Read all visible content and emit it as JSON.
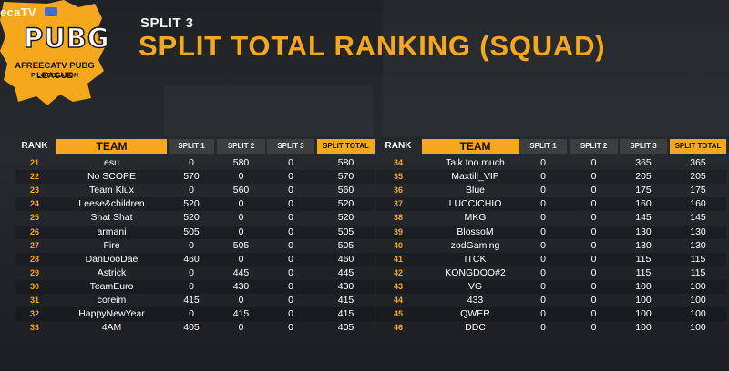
{
  "brand": {
    "text": "ecaTV"
  },
  "logo": {
    "game": "PUBG",
    "league": "AFREECATV PUBG LEAGUE",
    "season": "PILOT SEASON"
  },
  "header": {
    "subtitle": "SPLIT 3",
    "title": "SPLIT TOTAL RANKING (SQUAD)"
  },
  "columns": {
    "rank": "RANK",
    "team": "TEAM",
    "split1": "SPLIT 1",
    "split2": "SPLIT 2",
    "split3": "SPLIT 3",
    "total": "SPLIT TOTAL"
  },
  "colors": {
    "accent": "#f6a81c",
    "header_gray": "#3d3e40",
    "background": "#23262a"
  },
  "left_rows": [
    {
      "rank": "21",
      "team": "esu",
      "s1": "0",
      "s2": "580",
      "s3": "0",
      "total": "580"
    },
    {
      "rank": "22",
      "team": "No SCOPE",
      "s1": "570",
      "s2": "0",
      "s3": "0",
      "total": "570"
    },
    {
      "rank": "23",
      "team": "Team Klux",
      "s1": "0",
      "s2": "560",
      "s3": "0",
      "total": "560"
    },
    {
      "rank": "24",
      "team": "Leese&children",
      "s1": "520",
      "s2": "0",
      "s3": "0",
      "total": "520"
    },
    {
      "rank": "25",
      "team": "Shat Shat",
      "s1": "520",
      "s2": "0",
      "s3": "0",
      "total": "520"
    },
    {
      "rank": "26",
      "team": "armani",
      "s1": "505",
      "s2": "0",
      "s3": "0",
      "total": "505"
    },
    {
      "rank": "27",
      "team": "Fire",
      "s1": "0",
      "s2": "505",
      "s3": "0",
      "total": "505"
    },
    {
      "rank": "28",
      "team": "DanDooDae",
      "s1": "460",
      "s2": "0",
      "s3": "0",
      "total": "460"
    },
    {
      "rank": "29",
      "team": "Astrick",
      "s1": "0",
      "s2": "445",
      "s3": "0",
      "total": "445"
    },
    {
      "rank": "30",
      "team": "TeamEuro",
      "s1": "0",
      "s2": "430",
      "s3": "0",
      "total": "430"
    },
    {
      "rank": "31",
      "team": "coreim",
      "s1": "415",
      "s2": "0",
      "s3": "0",
      "total": "415"
    },
    {
      "rank": "32",
      "team": "HappyNewYear",
      "s1": "0",
      "s2": "415",
      "s3": "0",
      "total": "415"
    },
    {
      "rank": "33",
      "team": "4AM",
      "s1": "405",
      "s2": "0",
      "s3": "0",
      "total": "405"
    }
  ],
  "right_rows": [
    {
      "rank": "34",
      "team": "Talk too much",
      "s1": "0",
      "s2": "0",
      "s3": "365",
      "total": "365"
    },
    {
      "rank": "35",
      "team": "Maxtill_VIP",
      "s1": "0",
      "s2": "0",
      "s3": "205",
      "total": "205"
    },
    {
      "rank": "36",
      "team": "Blue",
      "s1": "0",
      "s2": "0",
      "s3": "175",
      "total": "175"
    },
    {
      "rank": "37",
      "team": "LUCCICHIO",
      "s1": "0",
      "s2": "0",
      "s3": "160",
      "total": "160"
    },
    {
      "rank": "38",
      "team": "MKG",
      "s1": "0",
      "s2": "0",
      "s3": "145",
      "total": "145"
    },
    {
      "rank": "39",
      "team": "BlossoM",
      "s1": "0",
      "s2": "0",
      "s3": "130",
      "total": "130"
    },
    {
      "rank": "40",
      "team": "zodGaming",
      "s1": "0",
      "s2": "0",
      "s3": "130",
      "total": "130"
    },
    {
      "rank": "41",
      "team": "ITCK",
      "s1": "0",
      "s2": "0",
      "s3": "115",
      "total": "115"
    },
    {
      "rank": "42",
      "team": "KONGDOO#2",
      "s1": "0",
      "s2": "0",
      "s3": "115",
      "total": "115"
    },
    {
      "rank": "43",
      "team": "VG",
      "s1": "0",
      "s2": "0",
      "s3": "100",
      "total": "100"
    },
    {
      "rank": "44",
      "team": "433",
      "s1": "0",
      "s2": "0",
      "s3": "100",
      "total": "100"
    },
    {
      "rank": "45",
      "team": "QWER",
      "s1": "0",
      "s2": "0",
      "s3": "100",
      "total": "100"
    },
    {
      "rank": "46",
      "team": "DDC",
      "s1": "0",
      "s2": "0",
      "s3": "100",
      "total": "100"
    }
  ]
}
